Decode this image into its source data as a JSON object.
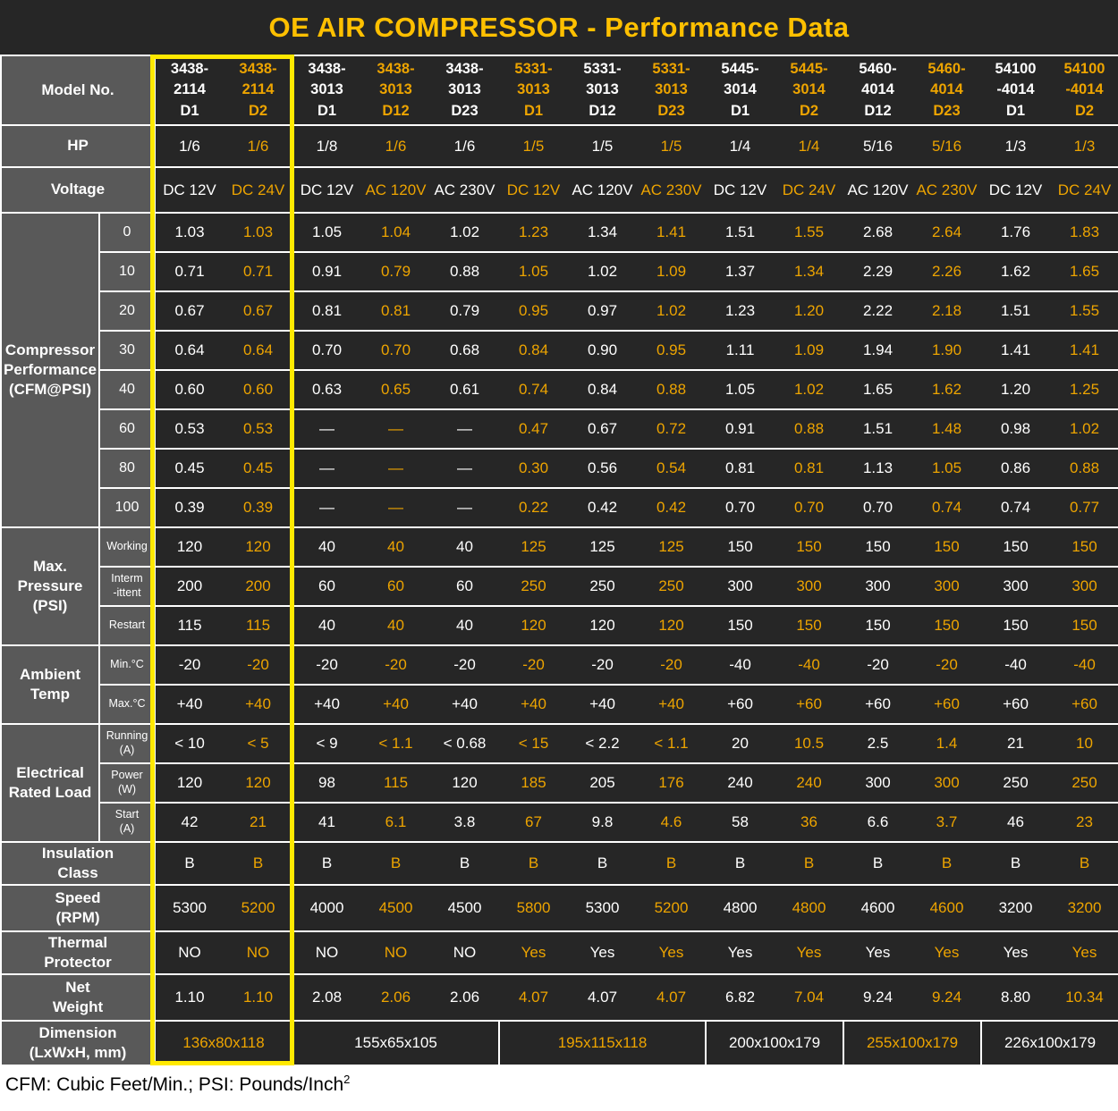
{
  "title": "OE AIR COMPRESSOR - Performance Data",
  "footer": {
    "text": "CFM: Cubic Feet/Min.;  PSI: Pounds/Inch",
    "sup": "2"
  },
  "colors": {
    "title_gold": "#FFC000",
    "value_orange": "#EDA400",
    "value_white": "#FFFFFF",
    "highlight_yellow": "#FFE900",
    "label_gray": "#595959",
    "cell_dark": "#262626"
  },
  "table": {
    "rows": [
      {
        "id": "model",
        "label": [
          "Model No."
        ],
        "cells": [
          [
            "3438-",
            "2114",
            "D1"
          ],
          [
            "3438-",
            "2114",
            "D2"
          ],
          [
            "3438-",
            "3013",
            "D1"
          ],
          [
            "3438-",
            "3013",
            "D12"
          ],
          [
            "3438-",
            "3013",
            "D23"
          ],
          [
            "5331-",
            "3013",
            "D1"
          ],
          [
            "5331-",
            "3013",
            "D12"
          ],
          [
            "5331-",
            "3013",
            "D23"
          ],
          [
            "5445-",
            "3014",
            "D1"
          ],
          [
            "5445-",
            "3014",
            "D2"
          ],
          [
            "5460-",
            "4014",
            "D12"
          ],
          [
            "5460-",
            "4014",
            "D23"
          ],
          [
            "54100",
            "-4014",
            "D1"
          ],
          [
            "54100",
            "-4014",
            "D2"
          ]
        ]
      },
      {
        "id": "hp",
        "label": [
          "HP"
        ],
        "cells": [
          "1/6",
          "1/6",
          "1/8",
          "1/6",
          "1/6",
          "1/5",
          "1/5",
          "1/5",
          "1/4",
          "1/4",
          "5/16",
          "5/16",
          "1/3",
          "1/3"
        ]
      },
      {
        "id": "voltage",
        "label": [
          "Voltage"
        ],
        "cells": [
          "DC 12V",
          "DC 24V",
          "DC 12V",
          "AC 120V",
          "AC 230V",
          "DC 12V",
          "AC 120V",
          "AC 230V",
          "DC 12V",
          "DC 24V",
          "AC 120V",
          "AC 230V",
          "DC 12V",
          "DC 24V"
        ]
      },
      {
        "id": "cfm",
        "label": [
          "Compressor",
          "Performance",
          "(CFM@PSI)"
        ],
        "subrows": [
          {
            "sub": "0",
            "cells": [
              "1.03",
              "1.03",
              "1.05",
              "1.04",
              "1.02",
              "1.23",
              "1.34",
              "1.41",
              "1.51",
              "1.55",
              "2.68",
              "2.64",
              "1.76",
              "1.83"
            ]
          },
          {
            "sub": "10",
            "cells": [
              "0.71",
              "0.71",
              "0.91",
              "0.79",
              "0.88",
              "1.05",
              "1.02",
              "1.09",
              "1.37",
              "1.34",
              "2.29",
              "2.26",
              "1.62",
              "1.65"
            ]
          },
          {
            "sub": "20",
            "cells": [
              "0.67",
              "0.67",
              "0.81",
              "0.81",
              "0.79",
              "0.95",
              "0.97",
              "1.02",
              "1.23",
              "1.20",
              "2.22",
              "2.18",
              "1.51",
              "1.55"
            ]
          },
          {
            "sub": "30",
            "cells": [
              "0.64",
              "0.64",
              "0.70",
              "0.70",
              "0.68",
              "0.84",
              "0.90",
              "0.95",
              "1.11",
              "1.09",
              "1.94",
              "1.90",
              "1.41",
              "1.41"
            ]
          },
          {
            "sub": "40",
            "cells": [
              "0.60",
              "0.60",
              "0.63",
              "0.65",
              "0.61",
              "0.74",
              "0.84",
              "0.88",
              "1.05",
              "1.02",
              "1.65",
              "1.62",
              "1.20",
              "1.25"
            ]
          },
          {
            "sub": "60",
            "cells": [
              "0.53",
              "0.53",
              "—",
              "—",
              "—",
              "0.47",
              "0.67",
              "0.72",
              "0.91",
              "0.88",
              "1.51",
              "1.48",
              "0.98",
              "1.02"
            ]
          },
          {
            "sub": "80",
            "cells": [
              "0.45",
              "0.45",
              "—",
              "—",
              "—",
              "0.30",
              "0.56",
              "0.54",
              "0.81",
              "0.81",
              "1.13",
              "1.05",
              "0.86",
              "0.88"
            ]
          },
          {
            "sub": "100",
            "cells": [
              "0.39",
              "0.39",
              "—",
              "—",
              "—",
              "0.22",
              "0.42",
              "0.42",
              "0.70",
              "0.70",
              "0.70",
              "0.74",
              "0.74",
              "0.77"
            ]
          }
        ]
      },
      {
        "id": "pressure",
        "label": [
          "Max.",
          "Pressure",
          "(PSI)"
        ],
        "subrows": [
          {
            "sub": "Working",
            "cells": [
              "120",
              "120",
              "40",
              "40",
              "40",
              "125",
              "125",
              "125",
              "150",
              "150",
              "150",
              "150",
              "150",
              "150"
            ]
          },
          {
            "sub": "Interm\n-ittent",
            "cells": [
              "200",
              "200",
              "60",
              "60",
              "60",
              "250",
              "250",
              "250",
              "300",
              "300",
              "300",
              "300",
              "300",
              "300"
            ]
          },
          {
            "sub": "Restart",
            "cells": [
              "115",
              "115",
              "40",
              "40",
              "40",
              "120",
              "120",
              "120",
              "150",
              "150",
              "150",
              "150",
              "150",
              "150"
            ]
          }
        ]
      },
      {
        "id": "ambient",
        "label": [
          "Ambient",
          "Temp"
        ],
        "subrows": [
          {
            "sub": "Min.°C",
            "cells": [
              "-20",
              "-20",
              "-20",
              "-20",
              "-20",
              "-20",
              "-20",
              "-20",
              "-40",
              "-40",
              "-20",
              "-20",
              "-40",
              "-40"
            ]
          },
          {
            "sub": "Max.°C",
            "cells": [
              "+40",
              "+40",
              "+40",
              "+40",
              "+40",
              "+40",
              "+40",
              "+40",
              "+60",
              "+60",
              "+60",
              "+60",
              "+60",
              "+60"
            ]
          }
        ]
      },
      {
        "id": "electrical",
        "label": [
          "Electrical",
          "Rated Load"
        ],
        "subrows": [
          {
            "sub": "Running\n(A)",
            "cells": [
              "< 10",
              "< 5",
              "< 9",
              "< 1.1",
              "< 0.68",
              "< 15",
              "< 2.2",
              "< 1.1",
              "20",
              "10.5",
              "2.5",
              "1.4",
              "21",
              "10"
            ]
          },
          {
            "sub": "Power\n(W)",
            "cells": [
              "120",
              "120",
              "98",
              "115",
              "120",
              "185",
              "205",
              "176",
              "240",
              "240",
              "300",
              "300",
              "250",
              "250"
            ]
          },
          {
            "sub": "Start\n(A)",
            "cells": [
              "42",
              "21",
              "41",
              "6.1",
              "3.8",
              "67",
              "9.8",
              "4.6",
              "58",
              "36",
              "6.6",
              "3.7",
              "46",
              "23"
            ]
          }
        ]
      },
      {
        "id": "insulation",
        "label": [
          "Insulation",
          "Class"
        ],
        "cells": [
          "B",
          "B",
          "B",
          "B",
          "B",
          "B",
          "B",
          "B",
          "B",
          "B",
          "B",
          "B",
          "B",
          "B"
        ]
      },
      {
        "id": "speed",
        "label": [
          "Speed",
          "(RPM)"
        ],
        "cells": [
          "5300",
          "5200",
          "4000",
          "4500",
          "4500",
          "5800",
          "5300",
          "5200",
          "4800",
          "4800",
          "4600",
          "4600",
          "3200",
          "3200"
        ]
      },
      {
        "id": "thermal",
        "label": [
          "Thermal",
          "Protector"
        ],
        "cells": [
          "NO",
          "NO",
          "NO",
          "NO",
          "NO",
          "Yes",
          "Yes",
          "Yes",
          "Yes",
          "Yes",
          "Yes",
          "Yes",
          "Yes",
          "Yes"
        ]
      },
      {
        "id": "net",
        "label": [
          "Net",
          "Weight"
        ],
        "cells": [
          "1.10",
          "1.10",
          "2.08",
          "2.06",
          "2.06",
          "4.07",
          "4.07",
          "4.07",
          "6.82",
          "7.04",
          "9.24",
          "9.24",
          "8.80",
          "10.34"
        ]
      },
      {
        "id": "dimension",
        "label": [
          "Dimension",
          "(LxWxH, mm)"
        ],
        "groups": [
          {
            "text": "136x80x118",
            "span": 2,
            "tone": "orange"
          },
          {
            "text": "155x65x105",
            "span": 3,
            "tone": "white"
          },
          {
            "text": "195x115x118",
            "span": 3,
            "tone": "orange"
          },
          {
            "text": "200x100x179",
            "span": 2,
            "tone": "white"
          },
          {
            "text": "255x100x179",
            "span": 2,
            "tone": "orange"
          },
          {
            "text": "226x100x179",
            "span": 2,
            "tone": "white"
          }
        ]
      }
    ]
  }
}
